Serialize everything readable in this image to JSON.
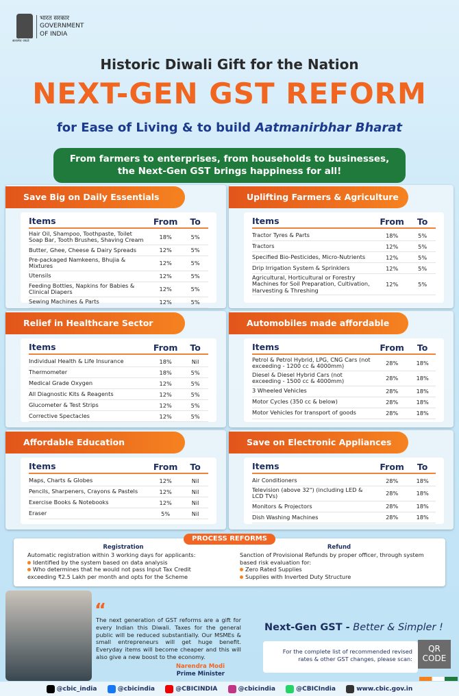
{
  "header": {
    "emblem_motto": "सत्यमेव जयते",
    "hindi": "भारत सरकार",
    "gov": "GOVERNMENT",
    "of_india": "OF INDIA"
  },
  "title": {
    "kicker": "Historic Diwali Gift for the Nation",
    "main": "NEXT-GEN GST REFORM",
    "sub_prefix": "for Ease of Living & to build",
    "sub_emph": "Aatmanirbhar Bharat"
  },
  "banner": [
    "From farmers to enterprises, from households to businesses,",
    "the Next-Gen GST brings happiness for all!"
  ],
  "sections": [
    {
      "title": "Save Big on Daily Essentials",
      "headers": [
        "Items",
        "From",
        "To"
      ],
      "rows": [
        [
          "Hair Oil, Shampoo, Toothpaste, Toilet Soap Bar, Tooth Brushes, Shaving Cream",
          "18%",
          "5%"
        ],
        [
          "Butter, Ghee, Cheese & Dairy Spreads",
          "12%",
          "5%"
        ],
        [
          "Pre-packaged Namkeens, Bhujia & Mixtures",
          "12%",
          "5%"
        ],
        [
          "Utensils",
          "12%",
          "5%"
        ],
        [
          "Feeding Bottles, Napkins for Babies & Clinical Diapers",
          "12%",
          "5%"
        ],
        [
          "Sewing Machines & Parts",
          "12%",
          "5%"
        ]
      ]
    },
    {
      "title": "Uplifting Farmers & Agriculture",
      "headers": [
        "Items",
        "From",
        "To"
      ],
      "rows": [
        [
          "Tractor Tyres & Parts",
          "18%",
          "5%"
        ],
        [
          "Tractors",
          "12%",
          "5%"
        ],
        [
          "Specified Bio-Pesticides, Micro-Nutrients",
          "12%",
          "5%"
        ],
        [
          "Drip Irrigation System & Sprinklers",
          "12%",
          "5%"
        ],
        [
          "Agricultural, Horticultural or Forestry Machines for Soil Preparation, Cultivation, Harvesting & Threshing",
          "12%",
          "5%"
        ]
      ]
    },
    {
      "title": "Relief in Healthcare Sector",
      "headers": [
        "Items",
        "From",
        "To"
      ],
      "rows": [
        [
          "Individual Health & Life Insurance",
          "18%",
          "Nil"
        ],
        [
          "Thermometer",
          "18%",
          "5%"
        ],
        [
          "Medical Grade Oxygen",
          "12%",
          "5%"
        ],
        [
          "All Diagnostic Kits & Reagents",
          "12%",
          "5%"
        ],
        [
          "Glucometer & Test Strips",
          "12%",
          "5%"
        ],
        [
          "Corrective Spectacles",
          "12%",
          "5%"
        ]
      ]
    },
    {
      "title": "Automobiles made affordable",
      "headers": [
        "Items",
        "From",
        "To"
      ],
      "rows": [
        [
          "Petrol & Petrol Hybrid, LPG, CNG Cars (not exceeding - 1200 cc & 4000mm)",
          "28%",
          "18%"
        ],
        [
          "Diesel & Diesel Hybrid Cars (not exceeding - 1500 cc & 4000mm)",
          "28%",
          "18%"
        ],
        [
          "3 Wheeled Vehicles",
          "28%",
          "18%"
        ],
        [
          "Motor Cycles (350 cc & below)",
          "28%",
          "18%"
        ],
        [
          "Motor Vehicles for transport of goods",
          "28%",
          "18%"
        ]
      ]
    },
    {
      "title": "Affordable Education",
      "headers": [
        "Items",
        "From",
        "To"
      ],
      "rows": [
        [
          "Maps, Charts & Globes",
          "12%",
          "Nil"
        ],
        [
          "Pencils, Sharpeners, Crayons & Pastels",
          "12%",
          "Nil"
        ],
        [
          "Exercise Books & Notebooks",
          "12%",
          "Nil"
        ],
        [
          "Eraser",
          "5%",
          "Nil"
        ]
      ]
    },
    {
      "title": "Save on Electronic Appliances",
      "headers": [
        "Items",
        "From",
        "To"
      ],
      "rows": [
        [
          "Air Conditioners",
          "28%",
          "18%"
        ],
        [
          "Television (above 32\") (including LED & LCD TVs)",
          "28%",
          "18%"
        ],
        [
          "Monitors & Projectors",
          "28%",
          "18%"
        ],
        [
          "Dish Washing Machines",
          "28%",
          "18%"
        ]
      ]
    }
  ],
  "process": {
    "title": "PROCESS REFORMS",
    "registration": {
      "title": "Registration",
      "intro": "Automatic registration within 3 working days for applicants:",
      "bullets": [
        "Identified by the system based on data analysis",
        "Who determines that he would not pass Input Tax Credit exceeding ₹2.5 Lakh per month and opts for the Scheme"
      ]
    },
    "refund": {
      "title": "Refund",
      "intro": "Sanction of Provisional Refunds by proper officer, through system based risk evaluation for:",
      "bullets": [
        "Zero Rated Supplies",
        "Supplies with Inverted Duty Structure"
      ]
    }
  },
  "quote": {
    "text": "The next generation of GST reforms are a gift for every Indian this Diwali. Taxes for the general public will be reduced substantially. Our MSMEs & small entrepreneurs will get huge benefit. Everyday items will become cheaper and this will also give a new boost to the economy.",
    "name": "Narendra Modi",
    "role": "Prime Minister"
  },
  "tagline": {
    "main": "Next-Gen GST -",
    "emph": "Better & Simpler !"
  },
  "scan": {
    "note": "For the complete list of recommended revised rates & other GST changes, please scan:",
    "qr": "QR CODE"
  },
  "socials": [
    "@cbic_india",
    "@cbicindia",
    "@CBICINDIA",
    "@cbicindia",
    "@CBICIndia",
    "www.cbic.gov.in"
  ]
}
